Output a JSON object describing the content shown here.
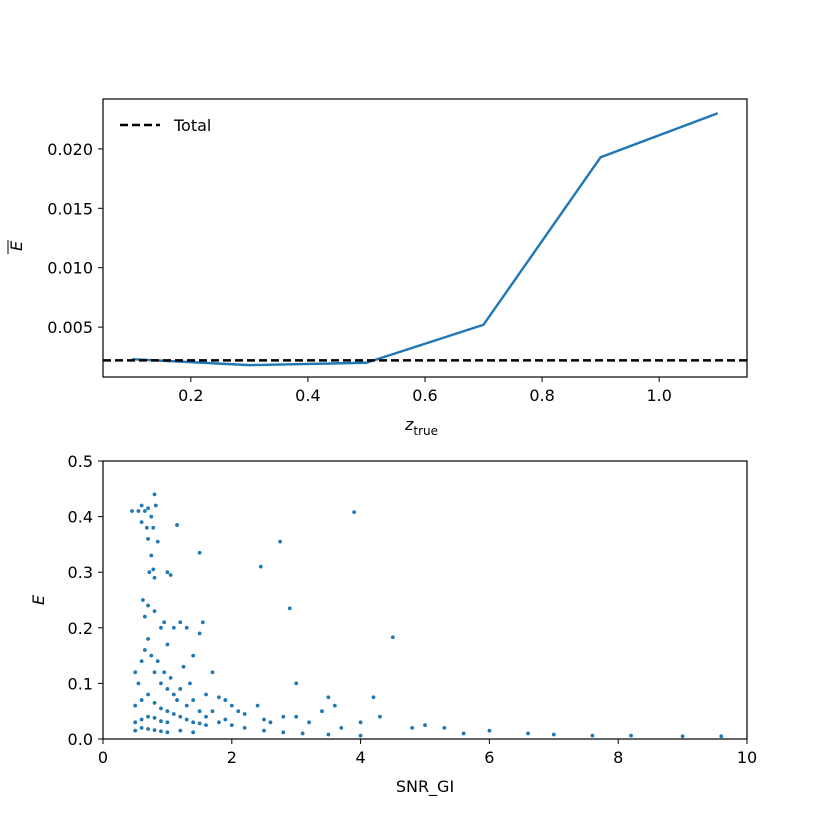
{
  "chart_data": [
    {
      "type": "line",
      "xlabel_main": "z",
      "xlabel_sub": "true",
      "ylabel": "E",
      "ylabel_overline": true,
      "xlim": [
        0.05,
        1.15
      ],
      "ylim": [
        0.0008,
        0.0242
      ],
      "xticks": [
        0.2,
        0.4,
        0.6,
        0.8,
        1.0
      ],
      "xtick_labels": [
        "0.2",
        "0.4",
        "0.6",
        "0.8",
        "1.0"
      ],
      "yticks": [
        0.005,
        0.01,
        0.015,
        0.02
      ],
      "ytick_labels": [
        "0.005",
        "0.010",
        "0.015",
        "0.020"
      ],
      "series": [
        {
          "x": [
            0.1,
            0.3,
            0.5,
            0.7,
            0.9,
            1.1
          ],
          "values": [
            0.0023,
            0.0018,
            0.002,
            0.0052,
            0.0193,
            0.023
          ],
          "color": "#1f77b4"
        }
      ],
      "hline": {
        "y": 0.0022,
        "name": "Total",
        "color": "#000000",
        "style": "dashed"
      },
      "legend": {
        "placement": "top-left",
        "entries": [
          "Total"
        ]
      },
      "grid": false
    },
    {
      "type": "scatter",
      "xlabel": "SNR_GI",
      "ylabel": "E",
      "xlim": [
        0,
        10
      ],
      "ylim": [
        0,
        0.5
      ],
      "xticks": [
        0,
        2,
        4,
        6,
        8,
        10
      ],
      "xtick_labels": [
        "0",
        "2",
        "4",
        "6",
        "8",
        "10"
      ],
      "yticks": [
        0.0,
        0.1,
        0.2,
        0.3,
        0.4,
        0.5
      ],
      "ytick_labels": [
        "0.0",
        "0.1",
        "0.2",
        "0.3",
        "0.4",
        "0.5"
      ],
      "color": "#1f77b4",
      "grid": false,
      "points": [
        [
          0.45,
          0.41
        ],
        [
          0.55,
          0.41
        ],
        [
          0.6,
          0.42
        ],
        [
          0.65,
          0.41
        ],
        [
          0.7,
          0.415
        ],
        [
          0.75,
          0.4
        ],
        [
          0.8,
          0.44
        ],
        [
          0.82,
          0.42
        ],
        [
          0.6,
          0.39
        ],
        [
          0.68,
          0.38
        ],
        [
          0.78,
          0.38
        ],
        [
          0.85,
          0.355
        ],
        [
          0.7,
          0.36
        ],
        [
          0.75,
          0.33
        ],
        [
          0.72,
          0.3
        ],
        [
          0.8,
          0.29
        ],
        [
          0.78,
          0.305
        ],
        [
          0.62,
          0.25
        ],
        [
          0.7,
          0.24
        ],
        [
          0.65,
          0.22
        ],
        [
          0.8,
          0.23
        ],
        [
          0.9,
          0.2
        ],
        [
          0.95,
          0.21
        ],
        [
          1.0,
          0.3
        ],
        [
          1.05,
          0.295
        ],
        [
          1.15,
          0.385
        ],
        [
          1.1,
          0.2
        ],
        [
          1.0,
          0.17
        ],
        [
          1.2,
          0.21
        ],
        [
          1.3,
          0.2
        ],
        [
          1.5,
          0.335
        ],
        [
          1.5,
          0.19
        ],
        [
          1.55,
          0.21
        ],
        [
          1.4,
          0.15
        ],
        [
          1.25,
          0.13
        ],
        [
          1.35,
          0.1
        ],
        [
          1.6,
          0.08
        ],
        [
          1.7,
          0.12
        ],
        [
          1.8,
          0.075
        ],
        [
          1.9,
          0.07
        ],
        [
          2.0,
          0.06
        ],
        [
          2.1,
          0.05
        ],
        [
          2.2,
          0.045
        ],
        [
          2.4,
          0.06
        ],
        [
          2.45,
          0.31
        ],
        [
          2.5,
          0.035
        ],
        [
          2.6,
          0.03
        ],
        [
          2.75,
          0.355
        ],
        [
          2.8,
          0.04
        ],
        [
          2.9,
          0.235
        ],
        [
          3.0,
          0.1
        ],
        [
          3.0,
          0.04
        ],
        [
          3.2,
          0.03
        ],
        [
          3.4,
          0.05
        ],
        [
          3.6,
          0.06
        ],
        [
          3.5,
          0.075
        ],
        [
          3.7,
          0.02
        ],
        [
          3.9,
          0.408
        ],
        [
          4.0,
          0.03
        ],
        [
          4.2,
          0.075
        ],
        [
          4.3,
          0.04
        ],
        [
          4.5,
          0.183
        ],
        [
          4.8,
          0.02
        ],
        [
          5.0,
          0.025
        ],
        [
          5.3,
          0.02
        ],
        [
          5.6,
          0.01
        ],
        [
          6.0,
          0.015
        ],
        [
          6.6,
          0.01
        ],
        [
          7.0,
          0.008
        ],
        [
          7.6,
          0.006
        ],
        [
          8.2,
          0.006
        ],
        [
          9.0,
          0.005
        ],
        [
          9.6,
          0.005
        ],
        [
          0.5,
          0.12
        ],
        [
          0.55,
          0.1
        ],
        [
          0.6,
          0.14
        ],
        [
          0.65,
          0.16
        ],
        [
          0.7,
          0.18
        ],
        [
          0.75,
          0.15
        ],
        [
          0.8,
          0.12
        ],
        [
          0.85,
          0.14
        ],
        [
          0.9,
          0.1
        ],
        [
          0.95,
          0.12
        ],
        [
          1.0,
          0.09
        ],
        [
          1.05,
          0.11
        ],
        [
          1.1,
          0.08
        ],
        [
          1.15,
          0.07
        ],
        [
          1.2,
          0.09
        ],
        [
          1.3,
          0.06
        ],
        [
          1.4,
          0.07
        ],
        [
          1.5,
          0.05
        ],
        [
          1.6,
          0.04
        ],
        [
          1.7,
          0.05
        ],
        [
          1.8,
          0.03
        ],
        [
          1.9,
          0.035
        ],
        [
          2.0,
          0.025
        ],
        [
          2.2,
          0.02
        ],
        [
          2.5,
          0.015
        ],
        [
          2.8,
          0.012
        ],
        [
          3.1,
          0.01
        ],
        [
          3.5,
          0.008
        ],
        [
          4.0,
          0.006
        ],
        [
          0.5,
          0.06
        ],
        [
          0.6,
          0.07
        ],
        [
          0.7,
          0.08
        ],
        [
          0.8,
          0.065
        ],
        [
          0.9,
          0.055
        ],
        [
          1.0,
          0.05
        ],
        [
          1.1,
          0.045
        ],
        [
          1.2,
          0.04
        ],
        [
          1.3,
          0.035
        ],
        [
          1.4,
          0.03
        ],
        [
          1.5,
          0.028
        ],
        [
          1.6,
          0.025
        ],
        [
          0.5,
          0.03
        ],
        [
          0.6,
          0.035
        ],
        [
          0.7,
          0.04
        ],
        [
          0.8,
          0.038
        ],
        [
          0.9,
          0.032
        ],
        [
          1.0,
          0.03
        ],
        [
          0.5,
          0.015
        ],
        [
          0.6,
          0.02
        ],
        [
          0.7,
          0.018
        ],
        [
          0.8,
          0.016
        ],
        [
          0.9,
          0.014
        ],
        [
          1.0,
          0.012
        ],
        [
          1.2,
          0.015
        ],
        [
          1.4,
          0.012
        ]
      ]
    }
  ]
}
